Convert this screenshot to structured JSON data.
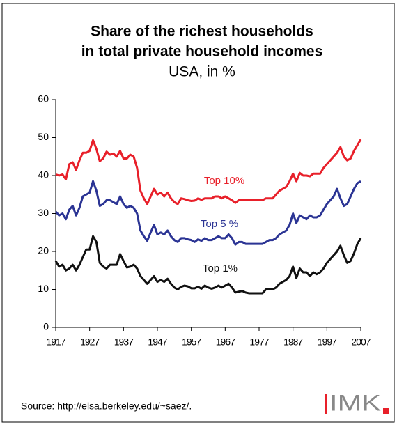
{
  "chart_data": {
    "type": "line",
    "title": [
      "Share of the richest households",
      "in total private household incomes"
    ],
    "subtitle": "USA, in %",
    "x": [
      1917,
      1918,
      1919,
      1920,
      1921,
      1922,
      1923,
      1924,
      1925,
      1926,
      1927,
      1928,
      1929,
      1930,
      1931,
      1932,
      1933,
      1934,
      1935,
      1936,
      1937,
      1938,
      1939,
      1940,
      1941,
      1942,
      1943,
      1944,
      1945,
      1946,
      1947,
      1948,
      1949,
      1950,
      1951,
      1952,
      1953,
      1954,
      1955,
      1956,
      1957,
      1958,
      1959,
      1960,
      1961,
      1962,
      1963,
      1964,
      1965,
      1966,
      1967,
      1968,
      1969,
      1970,
      1971,
      1972,
      1973,
      1974,
      1975,
      1976,
      1977,
      1978,
      1979,
      1980,
      1981,
      1982,
      1983,
      1984,
      1985,
      1986,
      1987,
      1988,
      1989,
      1990,
      1991,
      1992,
      1993,
      1994,
      1995,
      1996,
      1997,
      1998,
      1999,
      2000,
      2001,
      2002,
      2003,
      2004,
      2005,
      2006,
      2007
    ],
    "series": [
      {
        "name": "Top 10%",
        "color": "#e8202a",
        "values": [
          40.3,
          40,
          40.3,
          39,
          43,
          43.5,
          41.5,
          44,
          46,
          46,
          46.5,
          49.3,
          47,
          43.8,
          44.5,
          46.3,
          45.5,
          45.8,
          45,
          46.5,
          44.5,
          44.5,
          45.5,
          45,
          42,
          36,
          34,
          32.5,
          34.5,
          36.5,
          35,
          35.5,
          34.5,
          35.5,
          34,
          33,
          32.5,
          34,
          33.8,
          33.5,
          33.3,
          33.4,
          34,
          33.6,
          34,
          34,
          34,
          34.5,
          34.5,
          34,
          34.5,
          34,
          33.5,
          32.8,
          33.5,
          33.5,
          33.5,
          33.5,
          33.5,
          33.5,
          33.5,
          33.5,
          34,
          34,
          34,
          35,
          36,
          36.5,
          37,
          38.5,
          40.5,
          38.5,
          40.7,
          40,
          40,
          39.8,
          40.5,
          40.5,
          40.5,
          42,
          43,
          44,
          45,
          46,
          47.5,
          45,
          44,
          44.5,
          46.5,
          48,
          49.5
        ]
      },
      {
        "name": "Top 5 %",
        "color": "#2b3494",
        "values": [
          30.5,
          29.5,
          30,
          28.5,
          31,
          32,
          29.5,
          31.5,
          34.5,
          35,
          35.5,
          38.5,
          36,
          32,
          32.5,
          33.5,
          33.5,
          33,
          32.5,
          34.5,
          32.5,
          31.5,
          32,
          31.5,
          30,
          25.5,
          24,
          22.8,
          25,
          27,
          24.5,
          25,
          24.5,
          25.5,
          24,
          23,
          22.5,
          23.5,
          23.5,
          23.2,
          23,
          22.5,
          23.2,
          22.8,
          23.5,
          23,
          23,
          23.5,
          24,
          23.5,
          23.5,
          24.5,
          23.5,
          21.8,
          22.5,
          22.5,
          22,
          22,
          22,
          22,
          22,
          22,
          22.5,
          23,
          23,
          23.5,
          24.5,
          25,
          25.5,
          27,
          30,
          27.5,
          29.5,
          29,
          28.5,
          29.5,
          29,
          29,
          29.5,
          31,
          32.5,
          33.5,
          34.5,
          36.5,
          34,
          32,
          32.5,
          34.5,
          36.5,
          38,
          38.5
        ]
      },
      {
        "name": "Top 1%",
        "color": "#111111",
        "values": [
          17.5,
          16,
          16.5,
          15,
          15.5,
          16.5,
          15,
          16.5,
          18.5,
          20.5,
          20.5,
          24,
          22.5,
          17,
          16,
          15.5,
          16.5,
          16.5,
          16.5,
          19.3,
          17.5,
          15.8,
          16,
          16.5,
          15.5,
          13.5,
          12.5,
          11.5,
          12.5,
          13.5,
          12,
          12.5,
          12,
          12.8,
          11.5,
          10.5,
          10,
          10.7,
          11,
          10.8,
          10.3,
          10.3,
          10.7,
          10.2,
          11,
          10.5,
          10.2,
          10.5,
          11,
          10.5,
          11,
          11.5,
          10.5,
          9.2,
          9.4,
          9.6,
          9.2,
          9,
          9,
          9,
          9,
          9,
          10,
          10,
          10,
          10.5,
          11.5,
          12,
          12.5,
          13.5,
          16,
          13,
          15.5,
          14.5,
          14.5,
          13.5,
          14.5,
          14,
          14.5,
          15.5,
          17,
          18,
          19,
          20,
          21.5,
          19,
          17,
          17.5,
          19.5,
          22,
          23.5
        ]
      }
    ],
    "xlim": [
      1917,
      2007
    ],
    "xticks": [
      1917,
      1927,
      1937,
      1947,
      1957,
      1967,
      1977,
      1987,
      1997,
      2007
    ],
    "ylim": [
      0,
      60
    ],
    "yticks": [
      0,
      10,
      20,
      30,
      40,
      50,
      60
    ],
    "source": "Source: http://elsa.berkeley.edu/~saez/.",
    "logo": "IMK"
  }
}
